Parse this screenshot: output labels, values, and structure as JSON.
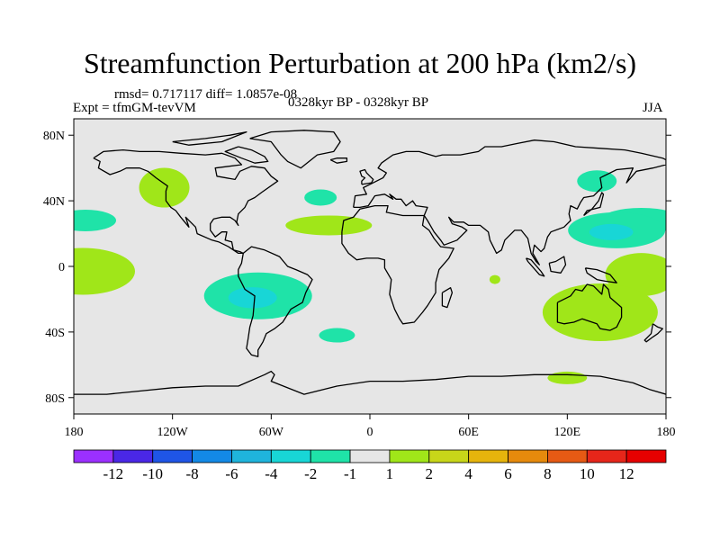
{
  "title": "Streamfunction Perturbation at 200 hPa (km2/s)",
  "stats_line": "rmsd= 0.717117 diff= 1.0857e-08",
  "experiment": "Expt = tfmGM-tevVM",
  "period": "0328kyr BP - 0328kyr BP",
  "season": "JJA",
  "lat_ticks": [
    "80N",
    "40N",
    "0",
    "40S",
    "80S"
  ],
  "lon_ticks": [
    "180",
    "120W",
    "60W",
    "0",
    "60E",
    "120E",
    "180"
  ],
  "colorbar": {
    "labels": [
      "-12",
      "-10",
      "-8",
      "-6",
      "-4",
      "-2",
      "-1",
      "1",
      "2",
      "4",
      "6",
      "8",
      "10",
      "12"
    ],
    "colors": [
      "#9b30ff",
      "#4a27e6",
      "#1f55e6",
      "#1389e6",
      "#1fb4dc",
      "#18d6d6",
      "#1fe3a8",
      "#e6e6e6",
      "#a0e619",
      "#c8d619",
      "#e6b40c",
      "#e68a0c",
      "#e65a14",
      "#e6261a",
      "#e60000"
    ]
  },
  "colors": {
    "background": "#e6e6e6",
    "positive": "#a0e619",
    "negative_light": "#1fe3a8",
    "negative_mid": "#18d6d6"
  },
  "contour_fields": [
    {
      "name": "neg-pacific-east",
      "level": "-1",
      "lon": 165,
      "lat": 28
    },
    {
      "name": "pos-north-america",
      "level": "1",
      "lon": -125,
      "lat": 48
    },
    {
      "name": "neg-north-atlantic",
      "level": "-1",
      "lon": -30,
      "lat": 42
    },
    {
      "name": "pos-atlantic-subtropic",
      "level": "1",
      "lon": -25,
      "lat": 25
    },
    {
      "name": "pos-east-pacific-tropics",
      "level": "1",
      "lon": 165,
      "lat": -5
    },
    {
      "name": "neg-south-america",
      "level": "-2",
      "lon": -68,
      "lat": -18
    },
    {
      "name": "neg-south-atlantic",
      "level": "-1",
      "lon": -20,
      "lat": -42
    },
    {
      "name": "pos-indian-ocean",
      "level": "1",
      "lon": 76,
      "lat": -8
    },
    {
      "name": "neg-west-pacific",
      "level": "-2",
      "lon": 150,
      "lat": 22
    },
    {
      "name": "neg-north-pacific",
      "level": "-1",
      "lon": 138,
      "lat": 52
    },
    {
      "name": "pos-australia",
      "level": "1",
      "lon": 140,
      "lat": -28
    },
    {
      "name": "pos-antarctic",
      "level": "1",
      "lon": 120,
      "lat": -68
    }
  ]
}
